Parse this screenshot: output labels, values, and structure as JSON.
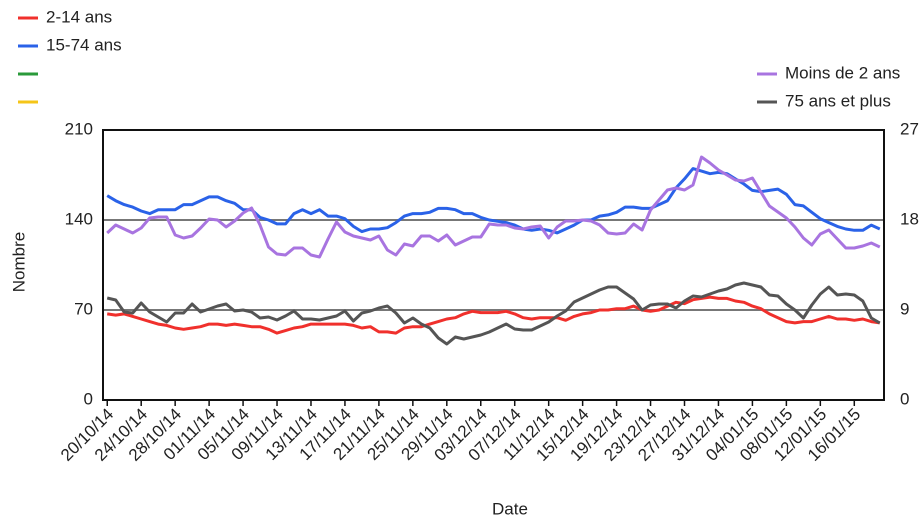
{
  "chart_data": {
    "type": "line",
    "ylabel": "Nombre",
    "xlabel": "Date",
    "ylim": [
      0,
      210
    ],
    "yticks": [
      0,
      70,
      140,
      210
    ],
    "y2lim": [
      0,
      27
    ],
    "y2ticks": [
      0,
      9,
      18,
      27
    ],
    "grid": true,
    "categories": [
      "20/10/14",
      null,
      null,
      null,
      "24/10/14",
      null,
      null,
      null,
      "28/10/14",
      null,
      null,
      null,
      "01/11/14",
      null,
      null,
      null,
      "05/11/14",
      null,
      null,
      null,
      "09/11/14",
      null,
      null,
      null,
      "13/11/14",
      null,
      null,
      null,
      "17/11/14",
      null,
      null,
      null,
      "21/11/14",
      null,
      null,
      null,
      "25/11/14",
      null,
      null,
      null,
      "29/11/14",
      null,
      null,
      null,
      "03/12/14",
      null,
      null,
      null,
      "07/12/14",
      null,
      null,
      null,
      "11/12/14",
      null,
      null,
      null,
      "15/12/14",
      null,
      null,
      null,
      "19/12/14",
      null,
      null,
      null,
      "23/12/14",
      null,
      null,
      null,
      "27/12/14",
      null,
      null,
      null,
      "31/12/14",
      null,
      null,
      null,
      "04/01/15",
      null,
      null,
      null,
      "08/01/15",
      null,
      null,
      null,
      "12/01/15",
      null,
      null,
      null,
      "16/01/15",
      null,
      null,
      null
    ],
    "series": [
      {
        "name": "2-14 ans",
        "color": "#f0302c",
        "axis": "y",
        "legend": "left",
        "values": [
          67,
          66,
          67,
          65,
          63,
          61,
          59,
          58,
          56,
          55,
          56,
          57,
          59,
          59,
          58,
          59,
          58,
          57,
          57,
          55,
          52,
          54,
          56,
          57,
          59,
          59,
          59,
          59,
          59,
          58,
          56,
          57,
          53,
          53,
          52,
          56,
          57,
          57,
          59,
          61,
          63,
          64,
          67,
          69,
          68,
          68,
          68,
          69,
          67,
          64,
          63,
          64,
          64,
          64,
          62,
          65,
          67,
          68,
          70,
          70,
          71,
          71,
          73,
          70,
          69,
          70,
          73,
          76,
          75,
          78,
          79,
          80,
          79,
          79,
          77,
          76,
          73,
          71,
          67,
          64,
          61,
          60,
          61,
          61,
          63,
          65,
          63,
          63,
          62,
          63,
          61,
          60
        ]
      },
      {
        "name": "15-74 ans",
        "color": "#2a62e8",
        "axis": "y",
        "legend": "left",
        "values": [
          159,
          155,
          152,
          150,
          147,
          145,
          148,
          148,
          148,
          152,
          152,
          155,
          158,
          158,
          155,
          153,
          148,
          148,
          142,
          140,
          137,
          137,
          145,
          148,
          145,
          148,
          143,
          143,
          141,
          135,
          131,
          133,
          133,
          134,
          138,
          143,
          145,
          145,
          146,
          149,
          149,
          148,
          145,
          145,
          142,
          140,
          139,
          138,
          136,
          133,
          132,
          133,
          132,
          130,
          133,
          136,
          140,
          140,
          143,
          144,
          146,
          150,
          150,
          149,
          149,
          152,
          155,
          165,
          172,
          180,
          178,
          176,
          177,
          176,
          172,
          168,
          163,
          162,
          163,
          164,
          160,
          152,
          151,
          146,
          141,
          138,
          135,
          133,
          132,
          132,
          136,
          133
        ]
      },
      {
        "name": "Moins de 2 ans",
        "color": "#a874e0",
        "axis": "y2",
        "legend": "right",
        "values": [
          16.7,
          17.5,
          17.1,
          16.7,
          17.2,
          18.2,
          18.3,
          18.3,
          16.5,
          16.2,
          16.4,
          17.2,
          18.1,
          18,
          17.3,
          17.9,
          18.7,
          19.2,
          17.5,
          15.3,
          14.6,
          14.5,
          15.2,
          15.2,
          14.5,
          14.3,
          16.1,
          17.8,
          16.8,
          16.4,
          16.2,
          16,
          16.4,
          15,
          14.5,
          15.6,
          15.4,
          16.4,
          16.4,
          15.9,
          16.5,
          15.5,
          15.9,
          16.3,
          16.3,
          17.6,
          17.5,
          17.5,
          17.2,
          17.1,
          17.3,
          17.4,
          16.2,
          17.3,
          17.9,
          17.9,
          18,
          17.9,
          17.5,
          16.7,
          16.6,
          16.7,
          17.6,
          17,
          19,
          20,
          21,
          21.2,
          21,
          21.5,
          24.3,
          23.7,
          23,
          22.5,
          22,
          21.9,
          22.2,
          20.8,
          19.4,
          18.8,
          18.2,
          17.3,
          16.2,
          15.5,
          16.6,
          17,
          16.1,
          15.2,
          15.2,
          15.4,
          15.7,
          15.3
        ]
      },
      {
        "name": "75 ans et plus",
        "color": "#555555",
        "axis": "y2",
        "legend": "right",
        "values": [
          10.2,
          10,
          8.8,
          8.7,
          9.7,
          8.8,
          8.3,
          7.8,
          8.7,
          8.7,
          9.6,
          8.8,
          9.1,
          9.4,
          9.6,
          8.9,
          9,
          8.8,
          8.2,
          8.3,
          8,
          8.4,
          8.9,
          8.1,
          8.1,
          8,
          8.2,
          8.4,
          8.9,
          7.9,
          8.7,
          8.9,
          9.2,
          9.4,
          8.7,
          7.7,
          8.2,
          7.6,
          7.2,
          6.2,
          5.6,
          6.3,
          6.1,
          6.3,
          6.5,
          6.8,
          7.2,
          7.6,
          7.1,
          7,
          7,
          7.4,
          7.8,
          8.4,
          8.9,
          9.8,
          10.2,
          10.6,
          11,
          11.3,
          11.3,
          10.7,
          10.1,
          9,
          9.5,
          9.6,
          9.6,
          9.2,
          9.9,
          10.4,
          10.3,
          10.6,
          10.9,
          11.1,
          11.5,
          11.7,
          11.5,
          11.3,
          10.5,
          10.4,
          9.6,
          9,
          8.2,
          9.5,
          10.6,
          11.3,
          10.5,
          10.6,
          10.5,
          9.9,
          8.2,
          7.7
        ]
      }
    ]
  }
}
